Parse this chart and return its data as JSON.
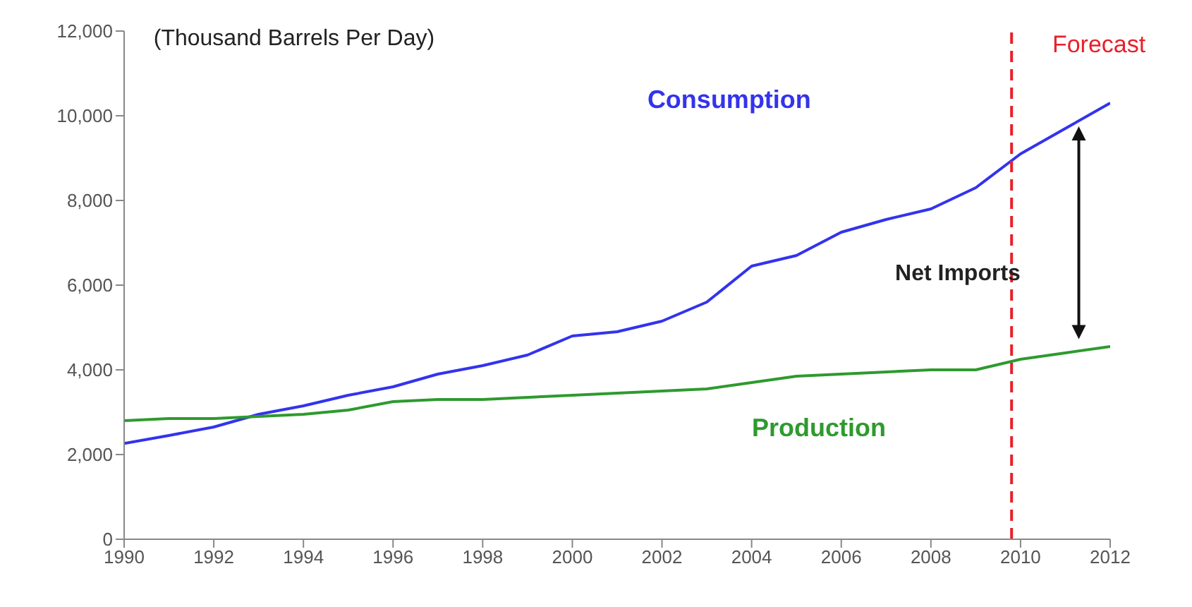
{
  "chart_data": {
    "type": "line",
    "ylabel": "(Thousand Barrels Per Day)",
    "x": [
      1990,
      1991,
      1992,
      1993,
      1994,
      1995,
      1996,
      1997,
      1998,
      1999,
      2000,
      2001,
      2002,
      2003,
      2004,
      2005,
      2006,
      2007,
      2008,
      2009,
      2010,
      2011,
      2012
    ],
    "series": [
      {
        "name": "Consumption",
        "color": "#3333ee",
        "values": [
          2260,
          2450,
          2650,
          2950,
          3150,
          3400,
          3600,
          3900,
          4100,
          4350,
          4800,
          4900,
          5150,
          5600,
          6450,
          6700,
          7250,
          7550,
          7800,
          8300,
          9100,
          9700,
          10300
        ]
      },
      {
        "name": "Production",
        "color": "#2e9a2e",
        "values": [
          2800,
          2850,
          2850,
          2900,
          2950,
          3050,
          3250,
          3300,
          3300,
          3350,
          3400,
          3450,
          3500,
          3550,
          3700,
          3850,
          3900,
          3950,
          4000,
          4000,
          4250,
          4400,
          4550
        ]
      }
    ],
    "xlim": [
      1990,
      2012
    ],
    "xticks": [
      1990,
      1992,
      1994,
      1996,
      1998,
      2000,
      2002,
      2004,
      2006,
      2008,
      2010,
      2012
    ],
    "ylim": [
      0,
      12000
    ],
    "yticks": [
      0,
      {
        "value": 2000,
        "label": "2,000"
      },
      {
        "value": 4000,
        "label": "4,000"
      },
      {
        "value": 6000,
        "label": "6,000"
      },
      {
        "value": 8000,
        "label": "8,000"
      },
      {
        "value": 10000,
        "label": "10,000"
      },
      {
        "value": 12000,
        "label": "12,000"
      }
    ],
    "ref_lines": [
      {
        "axis": "x",
        "value": 2009.8,
        "label": "Forecast",
        "color": "#e8202a",
        "line_style": "dashed"
      }
    ],
    "annotations": [
      "Net Imports"
    ],
    "grid": false,
    "legend": false,
    "marker": "none",
    "line_style": "solid"
  }
}
